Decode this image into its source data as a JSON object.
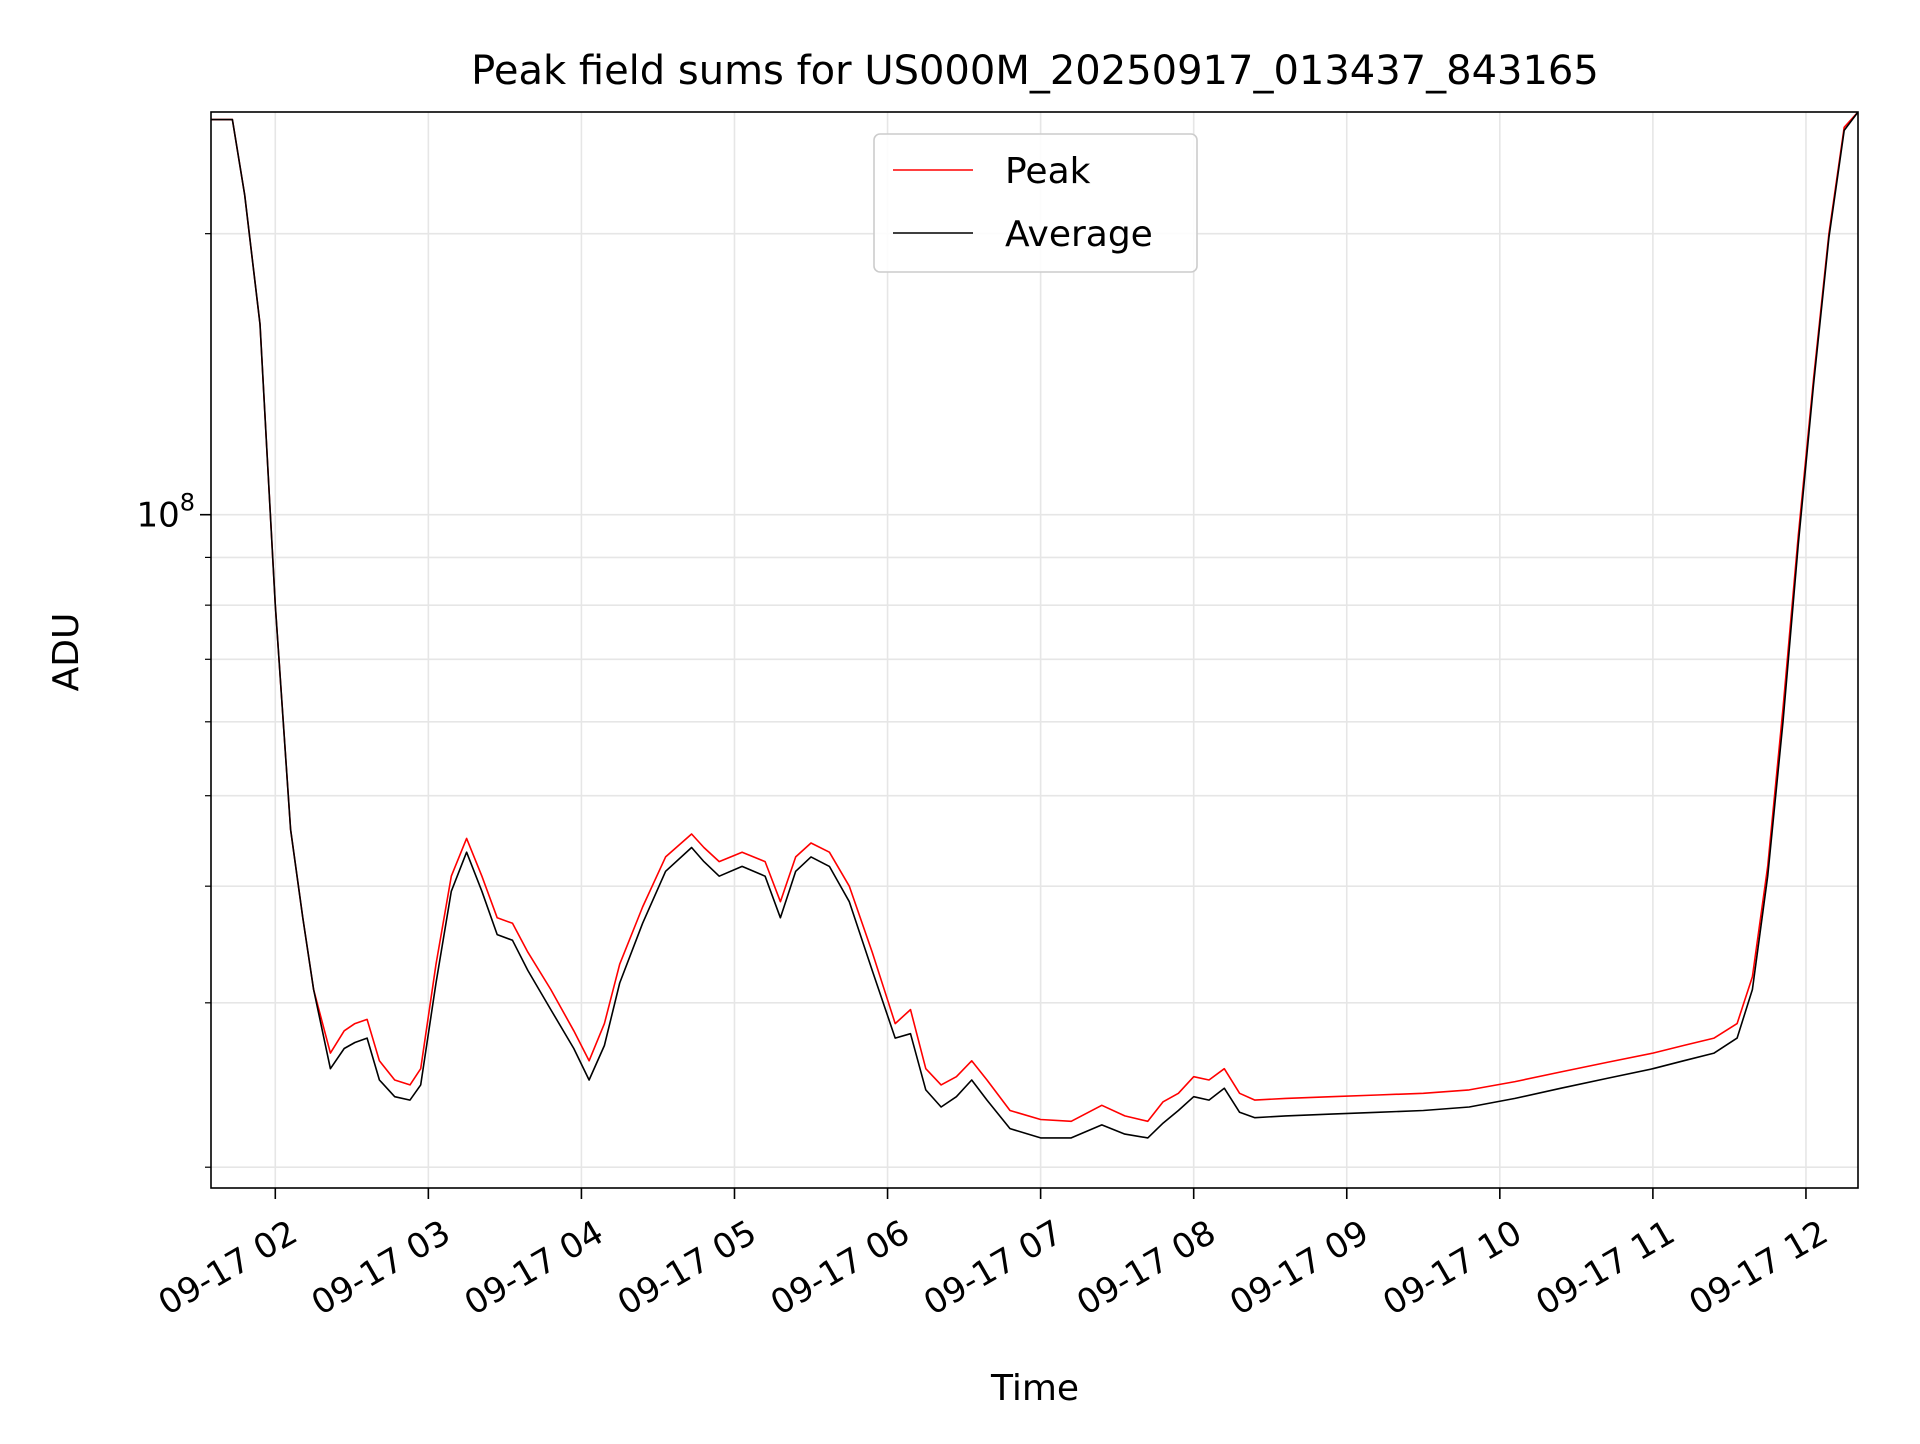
{
  "chart_data": {
    "type": "line",
    "title": "Peak field sums for US000M_20250917_013437_843165",
    "xlabel": "Time",
    "ylabel": "ADU",
    "yscale": "log",
    "xlim": [
      1.58,
      12.34
    ],
    "ylim": [
      19000000,
      270000000
    ],
    "grid": true,
    "legend_position": "upper center",
    "x_ticks": [
      {
        "value": 2,
        "label": "09-17 02"
      },
      {
        "value": 3,
        "label": "09-17 03"
      },
      {
        "value": 4,
        "label": "09-17 04"
      },
      {
        "value": 5,
        "label": "09-17 05"
      },
      {
        "value": 6,
        "label": "09-17 06"
      },
      {
        "value": 7,
        "label": "09-17 07"
      },
      {
        "value": 8,
        "label": "09-17 08"
      },
      {
        "value": 9,
        "label": "09-17 09"
      },
      {
        "value": 10,
        "label": "09-17 10"
      },
      {
        "value": 11,
        "label": "09-17 11"
      },
      {
        "value": 12,
        "label": "09-17 12"
      }
    ],
    "y_major_ticks": [
      {
        "value": 100000000,
        "base": "10",
        "exponent": "8"
      }
    ],
    "y_minor_ticks": [
      20000000,
      30000000,
      40000000,
      50000000,
      60000000,
      70000000,
      80000000,
      90000000,
      200000000
    ],
    "x_unit": "hours since 2025-09-17 00:00",
    "series": [
      {
        "name": "Peak",
        "color": "#ff0000",
        "x": [
          1.58,
          1.72,
          1.8,
          1.9,
          2.0,
          2.1,
          2.18,
          2.25,
          2.36,
          2.45,
          2.52,
          2.6,
          2.68,
          2.78,
          2.88,
          2.95,
          3.05,
          3.15,
          3.25,
          3.35,
          3.45,
          3.55,
          3.65,
          3.8,
          3.95,
          4.05,
          4.15,
          4.25,
          4.4,
          4.55,
          4.72,
          4.8,
          4.9,
          5.05,
          5.2,
          5.3,
          5.4,
          5.5,
          5.62,
          5.75,
          5.9,
          6.05,
          6.15,
          6.25,
          6.35,
          6.45,
          6.55,
          6.65,
          6.8,
          7.0,
          7.2,
          7.4,
          7.55,
          7.7,
          7.8,
          7.9,
          8.0,
          8.1,
          8.2,
          8.3,
          8.4,
          8.6,
          8.9,
          9.2,
          9.5,
          9.8,
          10.1,
          10.4,
          10.7,
          11.0,
          11.2,
          11.4,
          11.55,
          11.65,
          11.75,
          11.85,
          11.95,
          12.05,
          12.15,
          12.25,
          12.34
        ],
        "y": [
          265000000,
          265000000,
          220000000,
          160000000,
          80000000,
          46000000,
          37000000,
          31000000,
          26500000,
          28000000,
          28500000,
          28800000,
          26000000,
          24800000,
          24500000,
          25500000,
          33000000,
          41000000,
          45000000,
          41000000,
          37000000,
          36500000,
          34000000,
          31000000,
          28000000,
          26000000,
          28500000,
          33000000,
          38000000,
          43000000,
          45500000,
          44000000,
          42500000,
          43500000,
          42500000,
          38500000,
          43000000,
          44500000,
          43500000,
          40000000,
          34000000,
          28500000,
          29500000,
          25500000,
          24500000,
          25000000,
          26000000,
          24800000,
          23000000,
          22500000,
          22400000,
          23300000,
          22700000,
          22400000,
          23500000,
          24000000,
          25000000,
          24800000,
          25500000,
          24000000,
          23600000,
          23700000,
          23800000,
          23900000,
          24000000,
          24200000,
          24700000,
          25300000,
          25900000,
          26500000,
          27000000,
          27500000,
          28500000,
          32000000,
          42000000,
          62000000,
          95000000,
          140000000,
          200000000,
          260000000,
          270000000
        ]
      },
      {
        "name": "Average",
        "color": "#000000",
        "x": [
          1.58,
          1.72,
          1.8,
          1.9,
          2.0,
          2.1,
          2.18,
          2.25,
          2.36,
          2.45,
          2.52,
          2.6,
          2.68,
          2.78,
          2.88,
          2.95,
          3.05,
          3.15,
          3.25,
          3.35,
          3.45,
          3.55,
          3.65,
          3.8,
          3.95,
          4.05,
          4.15,
          4.25,
          4.4,
          4.55,
          4.72,
          4.8,
          4.9,
          5.05,
          5.2,
          5.3,
          5.4,
          5.5,
          5.62,
          5.75,
          5.9,
          6.05,
          6.15,
          6.25,
          6.35,
          6.45,
          6.55,
          6.65,
          6.8,
          7.0,
          7.2,
          7.4,
          7.55,
          7.7,
          7.8,
          7.9,
          8.0,
          8.1,
          8.2,
          8.3,
          8.4,
          8.6,
          8.9,
          9.2,
          9.5,
          9.8,
          10.1,
          10.4,
          10.7,
          11.0,
          11.2,
          11.4,
          11.55,
          11.65,
          11.75,
          11.85,
          11.95,
          12.05,
          12.15,
          12.25,
          12.34
        ],
        "y": [
          265000000,
          265000000,
          220000000,
          160000000,
          80000000,
          46000000,
          37000000,
          31000000,
          25500000,
          26800000,
          27200000,
          27500000,
          24800000,
          23800000,
          23600000,
          24500000,
          31500000,
          39500000,
          43500000,
          39500000,
          35500000,
          35000000,
          32500000,
          29500000,
          26800000,
          24800000,
          27000000,
          31500000,
          36500000,
          41500000,
          44000000,
          42500000,
          41000000,
          42000000,
          41000000,
          37000000,
          41500000,
          43000000,
          42000000,
          38500000,
          32500000,
          27500000,
          27800000,
          24200000,
          23200000,
          23800000,
          24800000,
          23600000,
          22000000,
          21500000,
          21500000,
          22200000,
          21700000,
          21500000,
          22300000,
          23000000,
          23800000,
          23600000,
          24300000,
          22900000,
          22600000,
          22700000,
          22800000,
          22900000,
          23000000,
          23200000,
          23700000,
          24300000,
          24900000,
          25500000,
          26000000,
          26500000,
          27500000,
          31000000,
          41000000,
          60000000,
          93000000,
          138000000,
          198000000,
          258000000,
          270000000
        ]
      }
    ]
  }
}
